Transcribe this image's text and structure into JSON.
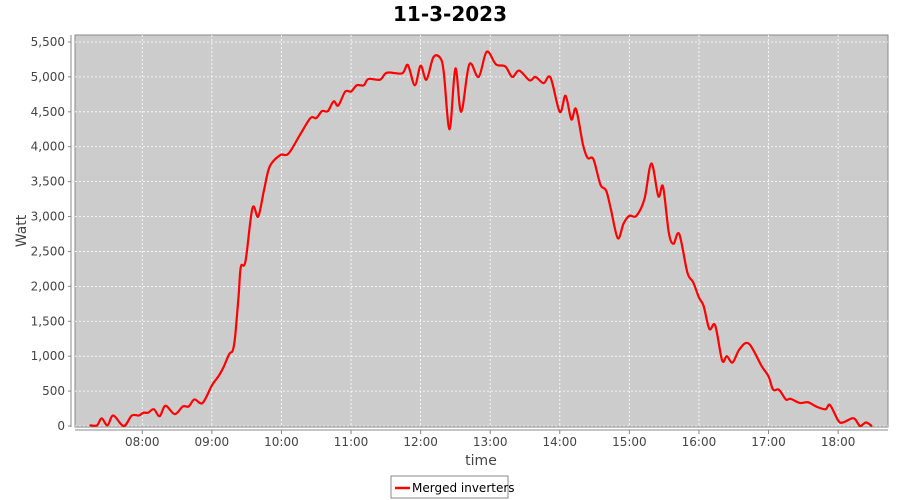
{
  "chart_data": {
    "type": "line",
    "title": "11-3-2023",
    "xlabel": "time",
    "ylabel": "Watt",
    "ylim": [
      0,
      5600
    ],
    "xlim": [
      "07:02",
      "18:43"
    ],
    "grid": true,
    "legend_position": "bottom",
    "background_color": "#cccccc",
    "yticks": [
      "0",
      "500",
      "1,000",
      "1,500",
      "2,000",
      "2,500",
      "3,000",
      "3,500",
      "4,000",
      "4,500",
      "5,000",
      "5,500"
    ],
    "xticks": [
      "08:00",
      "09:00",
      "10:00",
      "11:00",
      "12:00",
      "13:00",
      "14:00",
      "15:00",
      "16:00",
      "17:00",
      "18:00"
    ],
    "series": [
      {
        "name": "Merged inverters",
        "color": "#ff0000",
        "x": [
          "07:15",
          "07:21",
          "07:25",
          "07:30",
          "07:35",
          "07:44",
          "07:51",
          "07:57",
          "08:01",
          "08:05",
          "08:10",
          "08:15",
          "08:20",
          "08:28",
          "08:35",
          "08:40",
          "08:45",
          "08:52",
          "09:00",
          "09:06",
          "09:10",
          "09:15",
          "09:18",
          "09:20",
          "09:23",
          "09:25",
          "09:29",
          "09:35",
          "09:40",
          "09:45",
          "09:50",
          "09:59",
          "10:06",
          "10:16",
          "10:25",
          "10:30",
          "10:35",
          "10:40",
          "10:45",
          "10:49",
          "10:55",
          "11:00",
          "11:05",
          "11:11",
          "11:15",
          "11:25",
          "11:31",
          "11:44",
          "11:49",
          "11:55",
          "12:00",
          "12:05",
          "12:11",
          "12:17",
          "12:20",
          "12:25",
          "12:30",
          "12:35",
          "12:42",
          "12:50",
          "12:57",
          "13:05",
          "13:13",
          "13:19",
          "13:25",
          "13:34",
          "13:39",
          "13:46",
          "13:52",
          "14:00",
          "14:05",
          "14:10",
          "14:14",
          "14:20",
          "14:24",
          "14:29",
          "14:35",
          "14:40",
          "14:44",
          "14:50",
          "14:55",
          "15:00",
          "15:06",
          "15:13",
          "15:19",
          "15:25",
          "15:29",
          "15:34",
          "15:38",
          "15:43",
          "15:50",
          "15:55",
          "16:00",
          "16:04",
          "16:09",
          "16:14",
          "16:20",
          "16:24",
          "16:29",
          "16:35",
          "16:43",
          "16:54",
          "17:00",
          "17:04",
          "17:09",
          "17:15",
          "17:19",
          "17:27",
          "17:34",
          "17:41",
          "17:49",
          "17:53",
          "18:00",
          "18:04",
          "18:12",
          "18:15",
          "18:19",
          "18:24",
          "18:29"
        ],
        "values": [
          10,
          10,
          110,
          10,
          150,
          0,
          150,
          150,
          190,
          190,
          240,
          140,
          290,
          170,
          280,
          280,
          380,
          330,
          580,
          720,
          840,
          1030,
          1080,
          1270,
          1850,
          2280,
          2360,
          3120,
          3000,
          3380,
          3720,
          3880,
          3900,
          4170,
          4410,
          4410,
          4510,
          4510,
          4650,
          4590,
          4790,
          4790,
          4880,
          4880,
          4970,
          4960,
          5060,
          5050,
          5170,
          4880,
          5160,
          4960,
          5280,
          5270,
          5060,
          4250,
          5120,
          4500,
          5180,
          5000,
          5360,
          5180,
          5150,
          5000,
          5090,
          4950,
          5000,
          4910,
          4990,
          4500,
          4730,
          4390,
          4540,
          4030,
          3840,
          3820,
          3460,
          3370,
          3110,
          2690,
          2900,
          3010,
          3010,
          3250,
          3760,
          3290,
          3430,
          2770,
          2610,
          2750,
          2200,
          2060,
          1840,
          1720,
          1390,
          1440,
          940,
          1000,
          910,
          1100,
          1180,
          860,
          710,
          520,
          520,
          380,
          390,
          330,
          340,
          280,
          240,
          300,
          80,
          50,
          110,
          90,
          0,
          50,
          0
        ]
      }
    ]
  }
}
